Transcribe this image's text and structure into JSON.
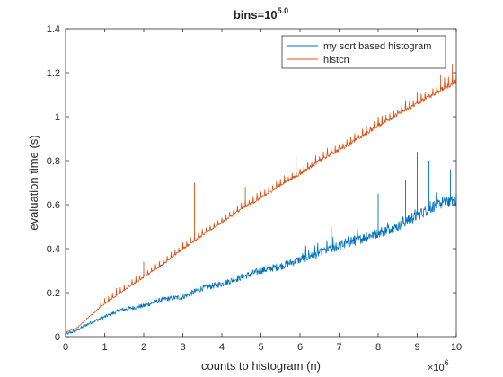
{
  "chart_data": {
    "type": "line",
    "title": "bins=10",
    "title_superscript": "5.0",
    "xlabel": "counts to histogram (n)",
    "ylabel": "evaluation time (s)",
    "x_multiplier_base": "×10",
    "x_multiplier_exp": "6",
    "xlim": [
      0,
      10
    ],
    "ylim": [
      0,
      1.4
    ],
    "x_ticks": [
      0,
      1,
      2,
      3,
      4,
      5,
      6,
      7,
      8,
      9,
      10
    ],
    "y_ticks": [
      0,
      0.2,
      0.4,
      0.6,
      0.8,
      1,
      1.2,
      1.4
    ],
    "x_tick_labels": [
      "0",
      "1",
      "2",
      "3",
      "4",
      "5",
      "6",
      "7",
      "8",
      "9",
      "10"
    ],
    "y_tick_labels": [
      "0",
      "0.2",
      "0.4",
      "0.6",
      "0.8",
      "1",
      "1.2",
      "1.4"
    ],
    "grid": false,
    "legend_position": "top-right",
    "series": [
      {
        "name": "my sort based histogram",
        "color": "#0072BD",
        "x": [
          0,
          0.3,
          0.6,
          1.0,
          1.4,
          2.0,
          2.5,
          3.0,
          3.5,
          4.0,
          4.5,
          5.0,
          5.5,
          6.0,
          6.5,
          7.0,
          7.5,
          8.0,
          8.5,
          9.0,
          9.5,
          10.0
        ],
        "y": [
          0.01,
          0.03,
          0.06,
          0.09,
          0.12,
          0.14,
          0.17,
          0.18,
          0.22,
          0.24,
          0.27,
          0.3,
          0.32,
          0.35,
          0.38,
          0.41,
          0.44,
          0.47,
          0.5,
          0.55,
          0.6,
          0.62
        ],
        "spikes": [
          {
            "x": 6.8,
            "y": 0.5
          },
          {
            "x": 8.0,
            "y": 0.65
          },
          {
            "x": 8.7,
            "y": 0.71
          },
          {
            "x": 9.0,
            "y": 0.84
          },
          {
            "x": 9.3,
            "y": 0.8
          },
          {
            "x": 9.85,
            "y": 0.76
          }
        ]
      },
      {
        "name": "histcn",
        "color": "#D95319",
        "x": [
          0,
          0.3,
          0.6,
          1.0,
          1.4,
          2.0,
          2.5,
          3.0,
          3.5,
          4.0,
          4.5,
          5.0,
          5.5,
          6.0,
          6.5,
          7.0,
          7.5,
          8.0,
          8.5,
          9.0,
          9.5,
          10.0
        ],
        "y": [
          0.02,
          0.04,
          0.09,
          0.15,
          0.2,
          0.27,
          0.33,
          0.4,
          0.46,
          0.52,
          0.58,
          0.63,
          0.69,
          0.74,
          0.8,
          0.85,
          0.9,
          0.96,
          1.01,
          1.06,
          1.11,
          1.16
        ],
        "spikes": [
          {
            "x": 1.3,
            "y": 0.22
          },
          {
            "x": 1.6,
            "y": 0.25
          },
          {
            "x": 2.0,
            "y": 0.34
          },
          {
            "x": 3.3,
            "y": 0.7
          },
          {
            "x": 4.6,
            "y": 0.68
          },
          {
            "x": 5.9,
            "y": 0.82
          },
          {
            "x": 8.0,
            "y": 1.0
          },
          {
            "x": 9.0,
            "y": 1.11
          },
          {
            "x": 9.6,
            "y": 1.19
          },
          {
            "x": 9.9,
            "y": 1.24
          }
        ]
      }
    ]
  }
}
